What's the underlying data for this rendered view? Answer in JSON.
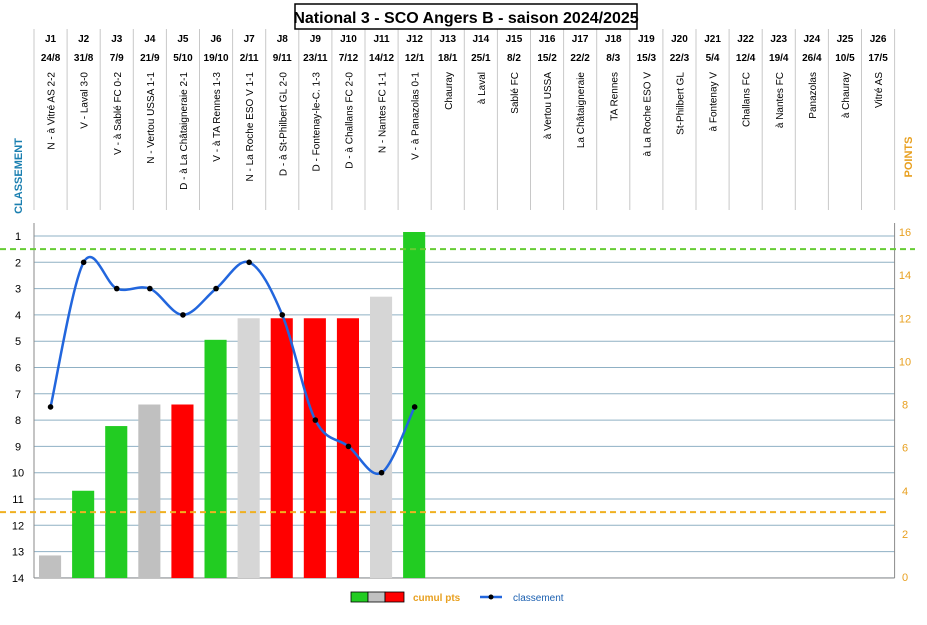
{
  "chart_data": {
    "type": "bar+line",
    "title": "National 3 - SCO Angers B - saison 2024/2025",
    "ylabel_left": "CLASSEMENT",
    "ylabel_right": "POINTS",
    "left_axis": {
      "min": 1,
      "max": 14,
      "inverted": true,
      "ticks": [
        1,
        2,
        3,
        4,
        5,
        6,
        7,
        8,
        9,
        10,
        11,
        12,
        13,
        14
      ]
    },
    "right_axis": {
      "min": 0,
      "max": 16,
      "ticks": [
        0,
        2,
        4,
        6,
        8,
        10,
        12,
        14,
        16
      ]
    },
    "rounds": [
      {
        "j": "J1",
        "date": "24/8",
        "match": "N - à Vitré AS 2-2"
      },
      {
        "j": "J2",
        "date": "31/8",
        "match": "V - Laval 3-0"
      },
      {
        "j": "J3",
        "date": "7/9",
        "match": "V - à Sablé FC 0-2"
      },
      {
        "j": "J4",
        "date": "21/9",
        "match": "N - Vertou USSA 1-1"
      },
      {
        "j": "J5",
        "date": "5/10",
        "match": "D - à La Châtaigneraie 2-1"
      },
      {
        "j": "J6",
        "date": "19/10",
        "match": "V - à TA Rennes 1-3"
      },
      {
        "j": "J7",
        "date": "2/11",
        "match": "N - La Roche ESO V 1-1"
      },
      {
        "j": "J8",
        "date": "9/11",
        "match": "D - à St-Philbert GL 2-0"
      },
      {
        "j": "J9",
        "date": "23/11",
        "match": "D - Fontenay-le-C. 1-3"
      },
      {
        "j": "J10",
        "date": "7/12",
        "match": "D - à Challans FC 2-0"
      },
      {
        "j": "J11",
        "date": "14/12",
        "match": "N - Nantes FC 1-1"
      },
      {
        "j": "J12",
        "date": "12/1",
        "match": "V - à Panazolas 0-1"
      },
      {
        "j": "J13",
        "date": "18/1",
        "match": "Chauray"
      },
      {
        "j": "J14",
        "date": "25/1",
        "match": "à Laval"
      },
      {
        "j": "J15",
        "date": "8/2",
        "match": "Sablé FC"
      },
      {
        "j": "J16",
        "date": "15/2",
        "match": "à Vertou USSA"
      },
      {
        "j": "J17",
        "date": "22/2",
        "match": "La Châtaigneraie"
      },
      {
        "j": "J18",
        "date": "8/3",
        "match": "TA Rennes"
      },
      {
        "j": "J19",
        "date": "15/3",
        "match": "à La Roche ESO V"
      },
      {
        "j": "J20",
        "date": "22/3",
        "match": "St-Philbert GL"
      },
      {
        "j": "J21",
        "date": "5/4",
        "match": "à Fontenay V"
      },
      {
        "j": "J22",
        "date": "12/4",
        "match": "Challans FC"
      },
      {
        "j": "J23",
        "date": "19/4",
        "match": "à Nantes FC"
      },
      {
        "j": "J24",
        "date": "26/4",
        "match": "Panazolas"
      },
      {
        "j": "J25",
        "date": "10/5",
        "match": "à Chauray"
      },
      {
        "j": "J26",
        "date": "17/5",
        "match": "Vitré AS"
      }
    ],
    "series": [
      {
        "name": "cumul pts",
        "kind": "bar",
        "axis": "right",
        "values": [
          1,
          4,
          7,
          8,
          8,
          11,
          12,
          12,
          12,
          12,
          13,
          16
        ],
        "results": [
          "N",
          "V",
          "V",
          "N",
          "D",
          "V",
          "N",
          "D",
          "D",
          "D",
          "N",
          "V"
        ]
      },
      {
        "name": "classement",
        "kind": "line",
        "axis": "left",
        "values": [
          7.5,
          2,
          3,
          3,
          4,
          3,
          2,
          4,
          8,
          9,
          10,
          7.5
        ]
      }
    ],
    "result_colors": {
      "V": "#22cc22",
      "N": "#c0c0c0",
      "D": "#ff0000"
    },
    "line_color": "#2266dd",
    "reference_lines": [
      {
        "axis": "left",
        "value": 1.5,
        "color": "#66cc33",
        "style": "dashed"
      },
      {
        "axis": "left",
        "value": 11.5,
        "color": "#f0b020",
        "style": "dashed"
      }
    ],
    "legend": {
      "placement": "bottom-center",
      "bar_label": "cumul pts",
      "line_label": "classement"
    }
  }
}
